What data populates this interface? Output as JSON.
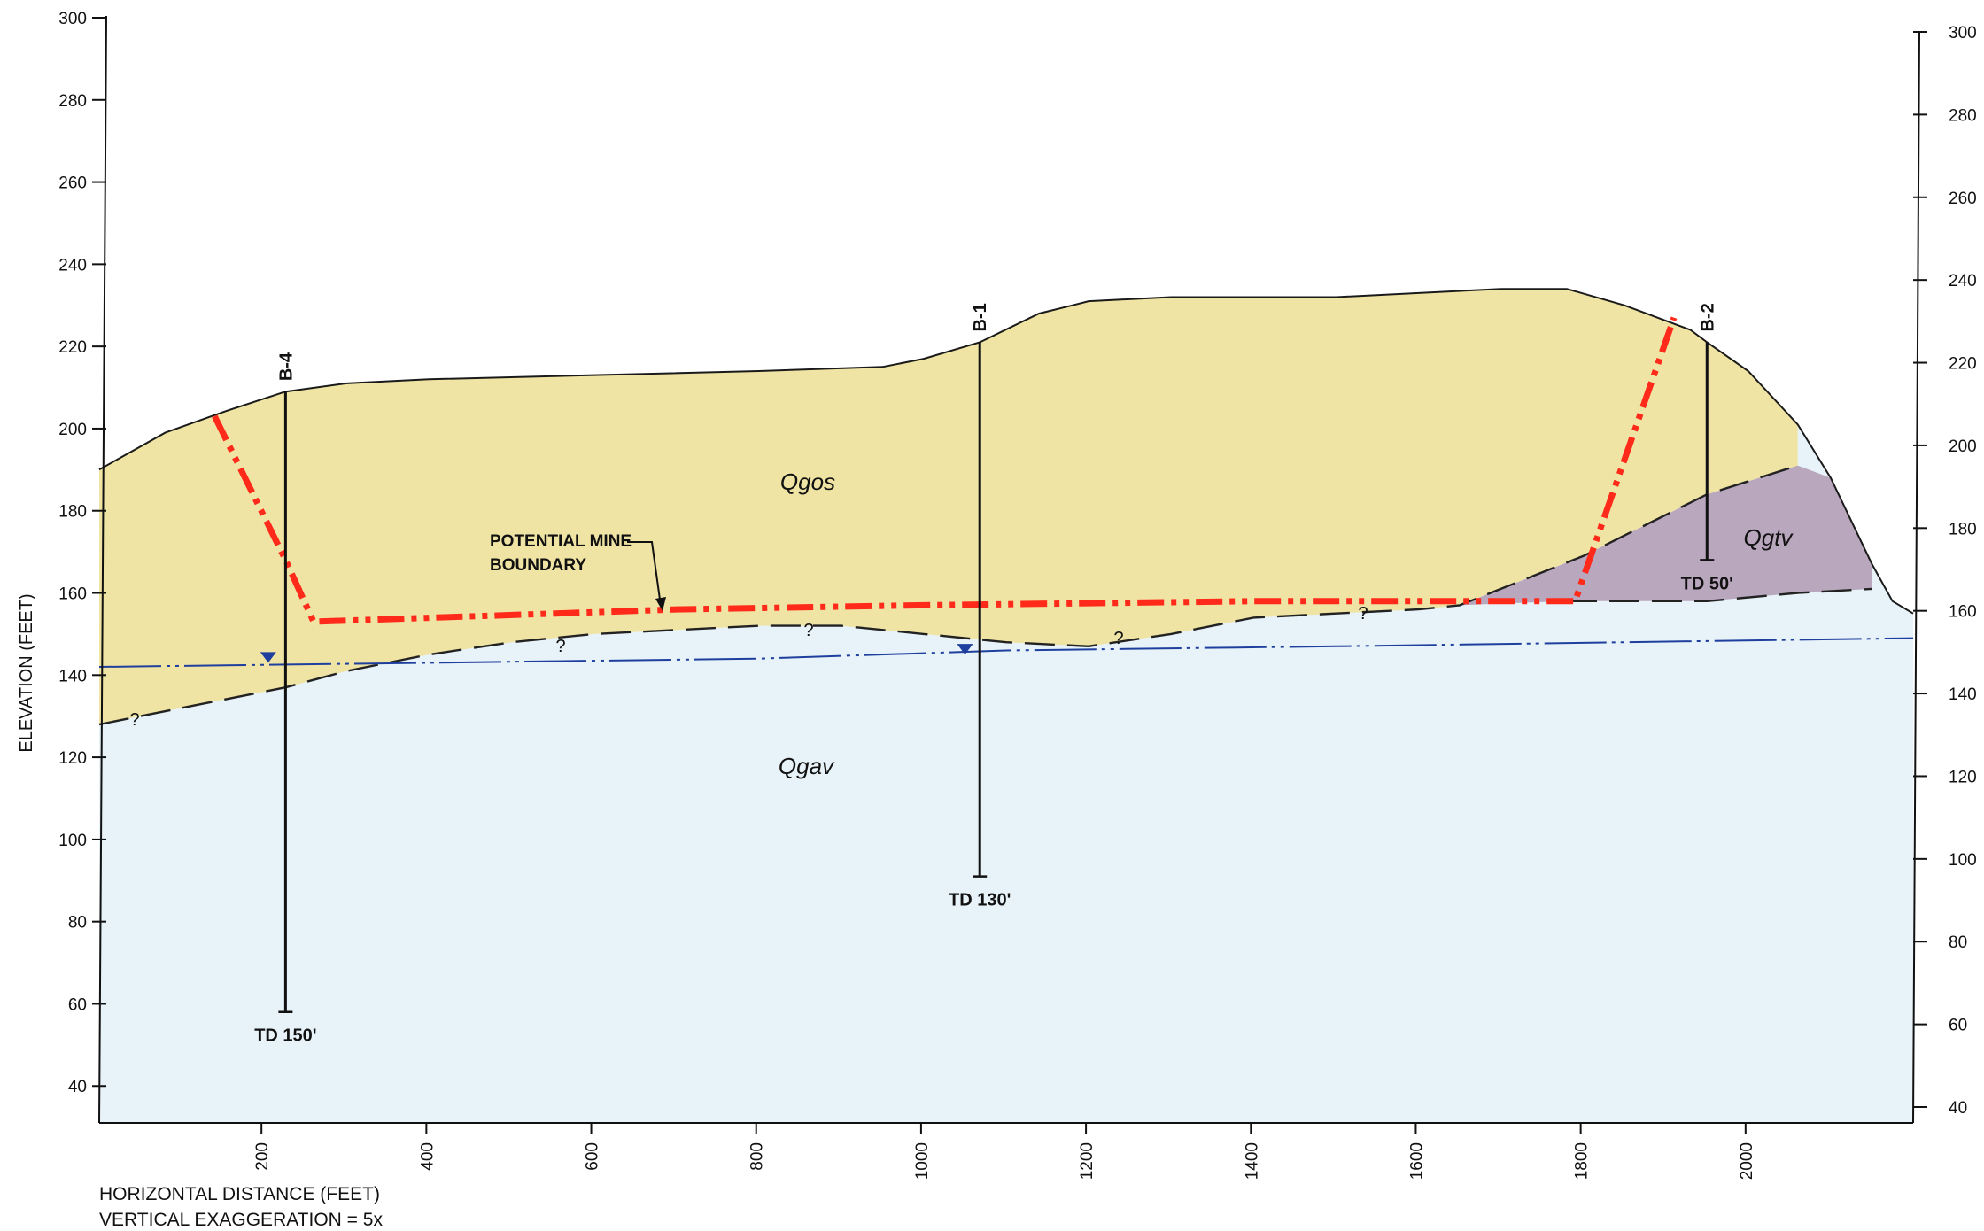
{
  "axes": {
    "y_title": "ELEVATION (FEET)",
    "y_ticks": [
      300,
      280,
      260,
      240,
      220,
      200,
      180,
      160,
      140,
      120,
      100,
      80,
      60,
      40
    ],
    "x_ticks": [
      200,
      400,
      600,
      800,
      1000,
      1200,
      1400,
      1600,
      1800,
      2000
    ],
    "x_title": "HORIZONTAL DISTANCE  (FEET)",
    "footer": "VERTICAL EXAGGERATION = 5x"
  },
  "units": [
    {
      "name": "Qgos",
      "color": "#efe4a4"
    },
    {
      "name": "Qgav",
      "color": "#e8f3f9"
    },
    {
      "name": "Qgtv",
      "color": "#b9a7be"
    }
  ],
  "borings": [
    {
      "name": "B-4",
      "x": 226,
      "top": 209,
      "td": 58,
      "td_label": "TD 150'"
    },
    {
      "name": "B-1",
      "x": 1068,
      "top": 221,
      "td": 91,
      "td_label": "TD 130'"
    },
    {
      "name": "B-2",
      "x": 1950,
      "top": 221,
      "td": 168,
      "td_label": "TD 50'"
    }
  ],
  "annotation": {
    "line1": "POTENTIAL MINE",
    "line2": "BOUNDARY"
  },
  "question_mark": "?",
  "colors": {
    "mine_boundary": "#ff2a1a",
    "water_table": "#1f3f9e",
    "contact": "#222222"
  }
}
